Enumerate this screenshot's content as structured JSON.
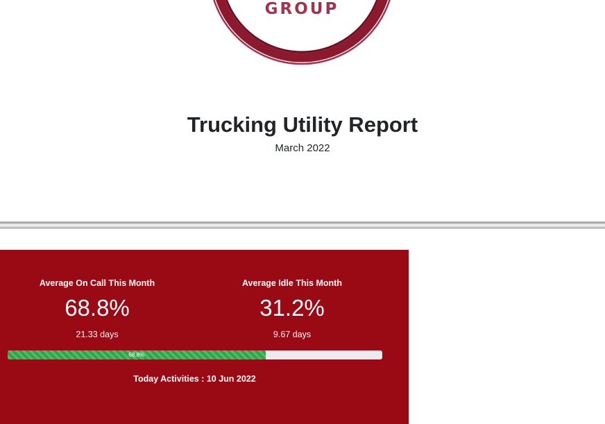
{
  "logo": {
    "text": "GROUP",
    "colors": {
      "outer_ring": "#a8304d",
      "inner_ring": "#8b1a2e",
      "text": "#a8304d"
    }
  },
  "report": {
    "title": "Trucking Utility Report",
    "period": "March 2022"
  },
  "panel": {
    "background": "#9a0a14",
    "on_call": {
      "label": "Average On Call This Month",
      "value": "68.8%",
      "days": "21.33 days"
    },
    "idle": {
      "label": "Average Idle This Month",
      "value": "31.2%",
      "days": "9.67 days"
    },
    "progress": {
      "percent": 68.8,
      "label": "68.8%",
      "fill_color": "#28a745",
      "track_color": "#e9ecef"
    },
    "today_activities": "Today Activities : 10 Jun 2022"
  }
}
